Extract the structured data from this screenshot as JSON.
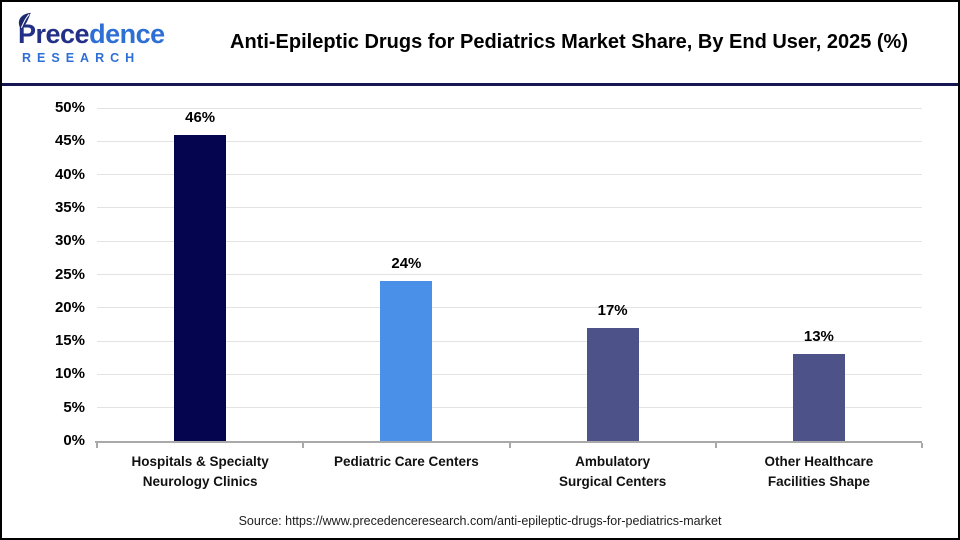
{
  "header": {
    "logo": {
      "part1": "Prece",
      "part2": "dence",
      "subtitle": "RESEARCH"
    },
    "title": "Anti-Epileptic Drugs for Pediatrics Market Share, By End User, 2025 (%)"
  },
  "chart_data": {
    "type": "bar",
    "title": "Anti-Epileptic Drugs for Pediatrics Market Share, By End User, 2025 (%)",
    "categories": [
      "Hospitals & Specialty Neurology Clinics",
      "Pediatric Care Centers",
      "Ambulatory Surgical Centers",
      "Other Healthcare Facilities Shape"
    ],
    "category_lines": [
      [
        "Hospitals & Specialty",
        "Neurology Clinics"
      ],
      [
        "Pediatric Care Centers"
      ],
      [
        "Ambulatory",
        "Surgical Centers"
      ],
      [
        "Other Healthcare",
        "Facilities Shape"
      ]
    ],
    "values": [
      46,
      24,
      17,
      13
    ],
    "value_labels": [
      "46%",
      "24%",
      "17%",
      "13%"
    ],
    "bar_colors": [
      "#04044f",
      "#4a90e8",
      "#4d5288",
      "#4d5288"
    ],
    "xlabel": "",
    "ylabel": "",
    "ylim": [
      0,
      50
    ],
    "ytick_step": 5,
    "ytick_suffix": "%",
    "grid": true,
    "legend": false
  },
  "footer": {
    "source": "Source: https://www.precedenceresearch.com/anti-epileptic-drugs-for-pediatrics-market"
  }
}
